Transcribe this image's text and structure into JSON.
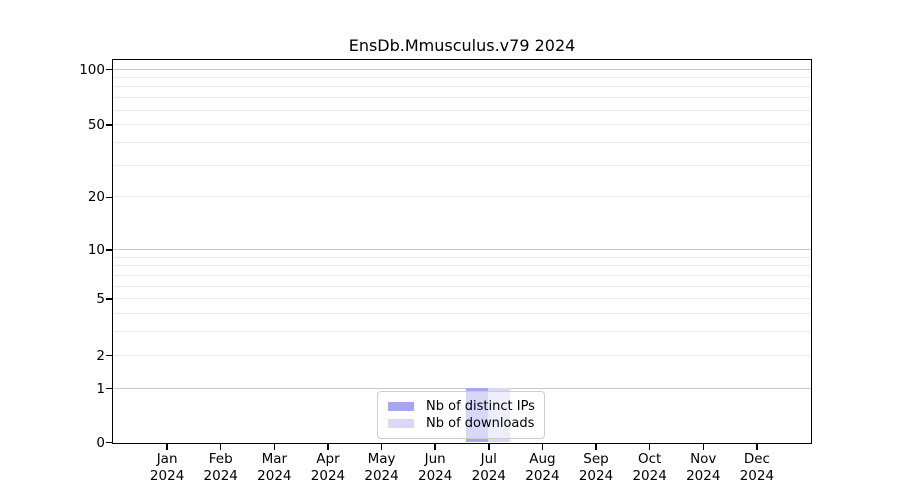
{
  "chart_data": {
    "type": "bar",
    "title": "EnsDb.Mmusculus.v79 2024",
    "categories": [
      "Jan 2024",
      "Feb 2024",
      "Mar 2024",
      "Apr 2024",
      "May 2024",
      "Jun 2024",
      "Jul 2024",
      "Aug 2024",
      "Sep 2024",
      "Oct 2024",
      "Nov 2024",
      "Dec 2024"
    ],
    "series": [
      {
        "name": "Nb of distinct IPs",
        "color": "#a7a7ef",
        "values": [
          0,
          0,
          0,
          0,
          0,
          0,
          1,
          0,
          0,
          0,
          0,
          0
        ]
      },
      {
        "name": "Nb of downloads",
        "color": "#d9d9f6",
        "values": [
          0,
          0,
          0,
          0,
          0,
          0,
          1,
          0,
          0,
          0,
          0,
          0
        ]
      }
    ],
    "xlabel": "",
    "ylabel": "",
    "yaxis": {
      "scale": "log1p",
      "ticks": [
        0,
        1,
        2,
        5,
        10,
        20,
        50,
        100
      ],
      "minor_ticks": [
        3,
        4,
        6,
        7,
        8,
        9,
        30,
        40,
        60,
        70,
        80,
        90
      ],
      "ylim": [
        0,
        112
      ]
    },
    "grid": "horizontal",
    "legend_position": "bottom-center"
  },
  "colors": {
    "axis": "#000000",
    "grid_major": "#c9c9c9",
    "grid_minor": "#e9e9e9",
    "legend_border": "#cccccc"
  }
}
